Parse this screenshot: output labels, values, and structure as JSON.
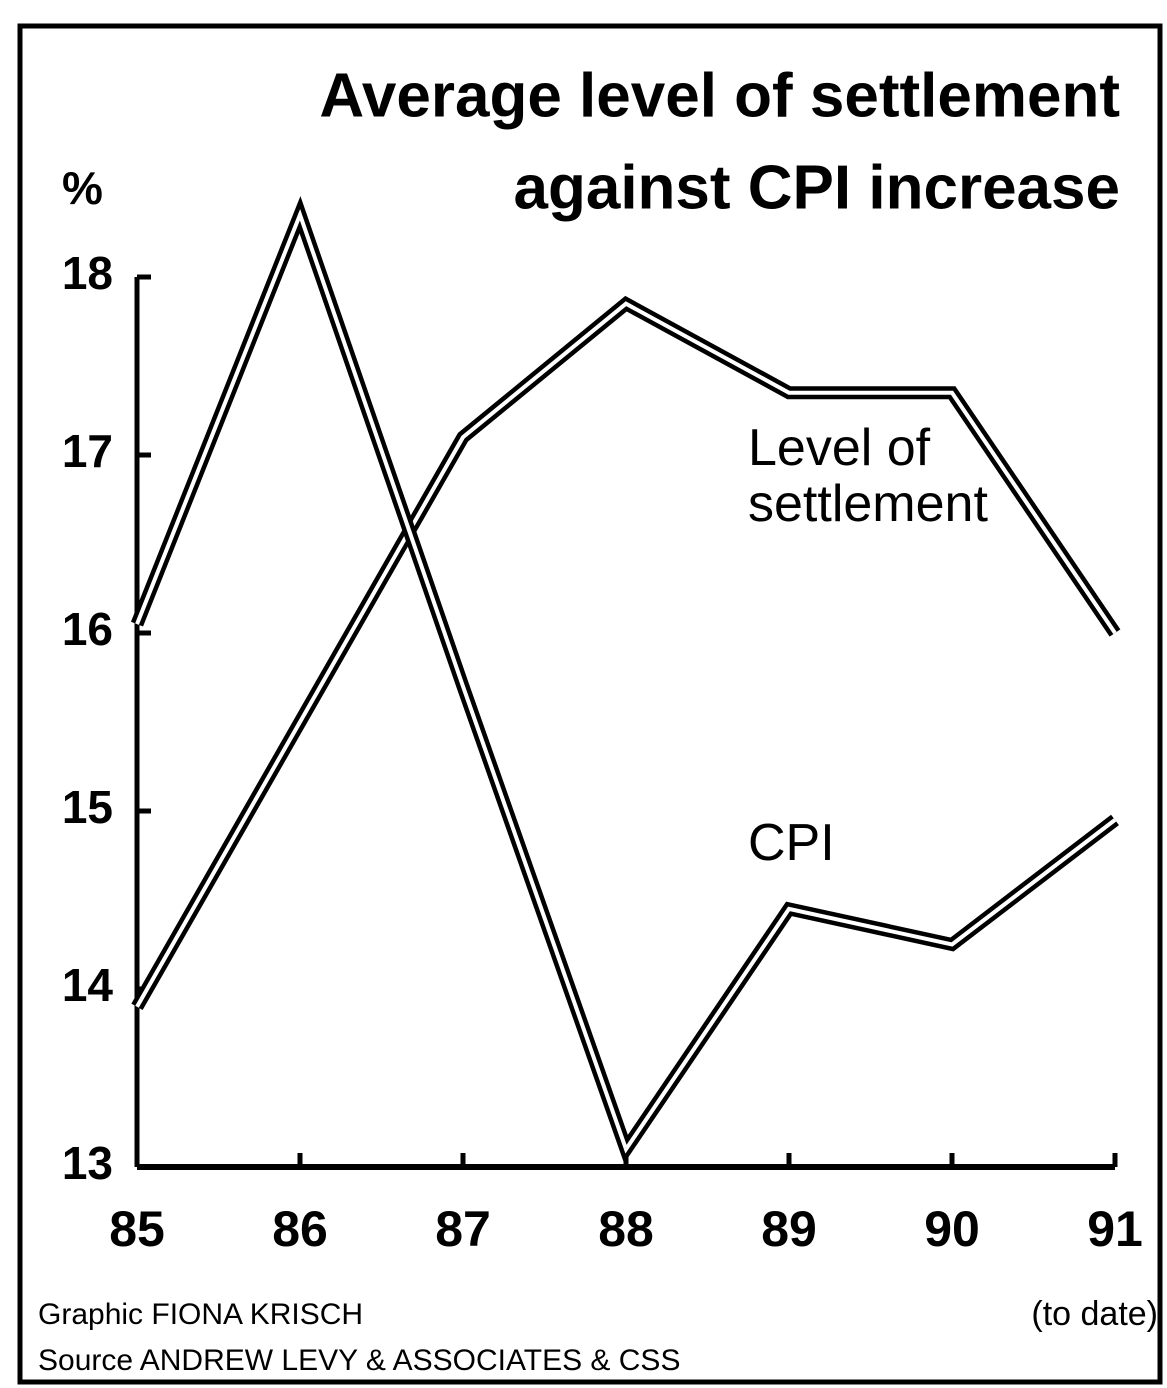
{
  "chart_data": {
    "type": "line",
    "title": [
      "Average level of settlement",
      "against CPI increase"
    ],
    "y_label": "%",
    "categories": [
      "85",
      "86",
      "87",
      "88",
      "89",
      "90",
      "91"
    ],
    "x_note": "(to date)",
    "series": [
      {
        "name": "Level of settlement",
        "color": "#000000",
        "values": [
          13.9,
          15.5,
          17.1,
          17.85,
          17.35,
          17.35,
          16.0
        ]
      },
      {
        "name": "CPI",
        "color": "#000000",
        "values": [
          16.05,
          18.35,
          15.7,
          13.1,
          14.45,
          14.25,
          14.95
        ]
      }
    ],
    "ylim": [
      13,
      18.5
    ],
    "yticks": [
      13,
      14,
      15,
      16,
      17,
      18
    ],
    "credits": [
      "Graphic FIONA KRISCH",
      "Source ANDREW LEVY & ASSOCIATES & CSS"
    ]
  }
}
